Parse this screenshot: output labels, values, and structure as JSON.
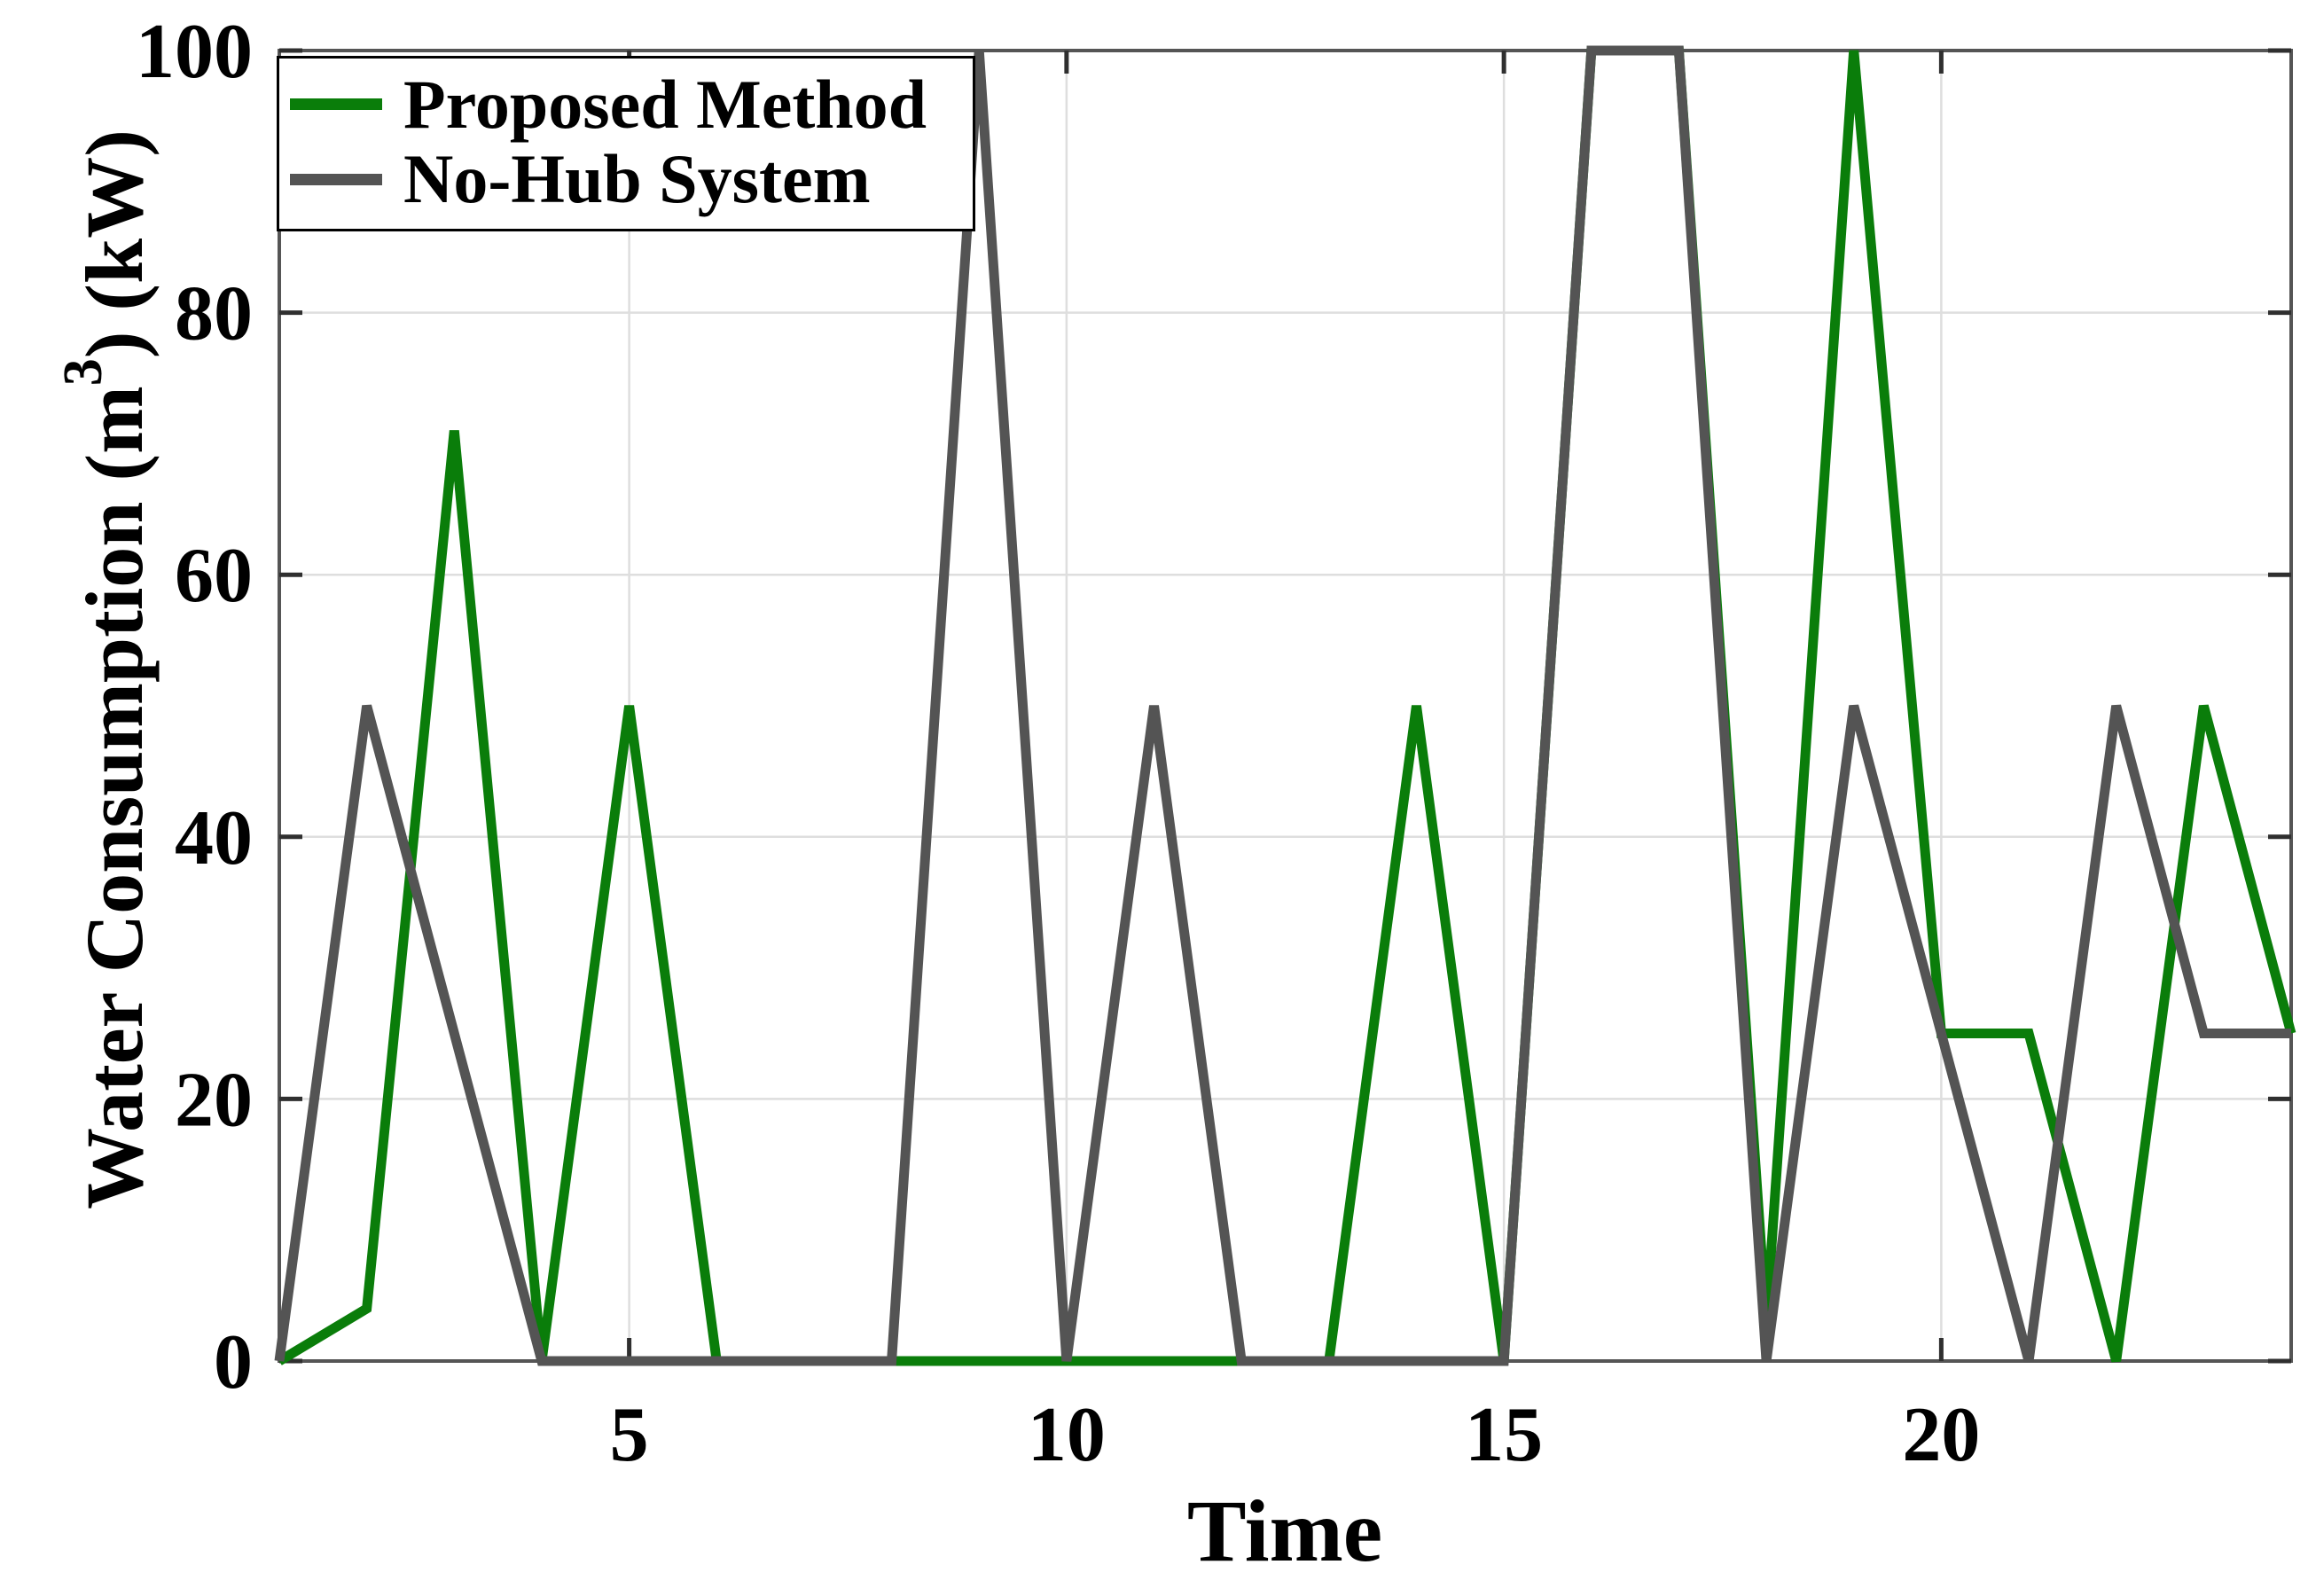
{
  "chart_data": {
    "type": "line",
    "title": "",
    "xlabel": "Time",
    "ylabel": "Water Consumption (m3) (kW)",
    "ylabel_parts": {
      "prefix": "Water Consumption (m",
      "sup": "3",
      "suffix": ") (kW)"
    },
    "x": [
      1,
      2,
      3,
      4,
      5,
      6,
      7,
      8,
      9,
      10,
      11,
      12,
      13,
      14,
      15,
      16,
      17,
      18,
      19,
      20,
      21,
      22,
      23,
      24
    ],
    "series": [
      {
        "name": "Proposed Method",
        "color": "#0a7d0a",
        "values": [
          0,
          4,
          71,
          0,
          50,
          0,
          0,
          0,
          0,
          0,
          0,
          0,
          0,
          50,
          0,
          100,
          100,
          3,
          100,
          25,
          25,
          0,
          50,
          25
        ]
      },
      {
        "name": "No-Hub System",
        "color": "#545454",
        "values": [
          0,
          50,
          25,
          0,
          0,
          0,
          0,
          0,
          100,
          0,
          50,
          0,
          0,
          0,
          0,
          100,
          100,
          0,
          50,
          25,
          0,
          50,
          25,
          25
        ]
      }
    ],
    "xlim": [
      1,
      24
    ],
    "ylim": [
      0,
      100
    ],
    "xticks": [
      5,
      10,
      15,
      20
    ],
    "yticks": [
      0,
      20,
      40,
      60,
      80,
      100
    ],
    "grid": true,
    "legend_position": "top-left"
  },
  "style": {
    "background": "#ffffff",
    "axis_box_color": "#555555",
    "tick_mark_color": "#2f2f2f",
    "grid_color": "#dedede",
    "text_color": "#000000"
  }
}
